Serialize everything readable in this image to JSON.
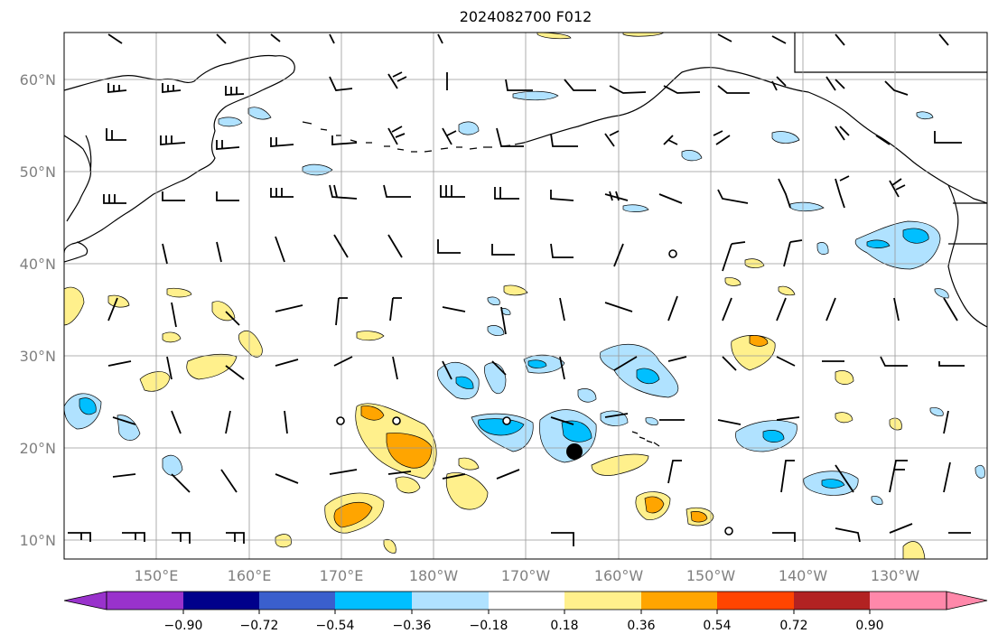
{
  "title": "2024082700 F012",
  "lat_labels": [
    "60°N",
    "50°N",
    "40°N",
    "30°N",
    "20°N",
    "10°N"
  ],
  "lon_labels": [
    "150°E",
    "160°E",
    "170°E",
    "180°W",
    "170°W",
    "160°W",
    "150°W",
    "140°W",
    "130°W"
  ],
  "colorbar": {
    "tick_labels": [
      "−0.90",
      "−0.72",
      "−0.54",
      "−0.36",
      "−0.18",
      "0.18",
      "0.36",
      "0.54",
      "0.72",
      "0.90"
    ],
    "colors": [
      "#9932cc",
      "#00008b",
      "#3a5fcd",
      "#00bfff",
      "#b0e2ff",
      "#ffffff",
      "#fff08c",
      "#ffa500",
      "#ff4500",
      "#b22222",
      "#ff88aa"
    ]
  },
  "colors": {
    "positive_light": "#fff08c",
    "positive_mid": "#ffa500",
    "negative_light": "#b0e2ff",
    "negative_mid": "#00bfff",
    "grid": "#999999",
    "coast": "#000000"
  }
}
